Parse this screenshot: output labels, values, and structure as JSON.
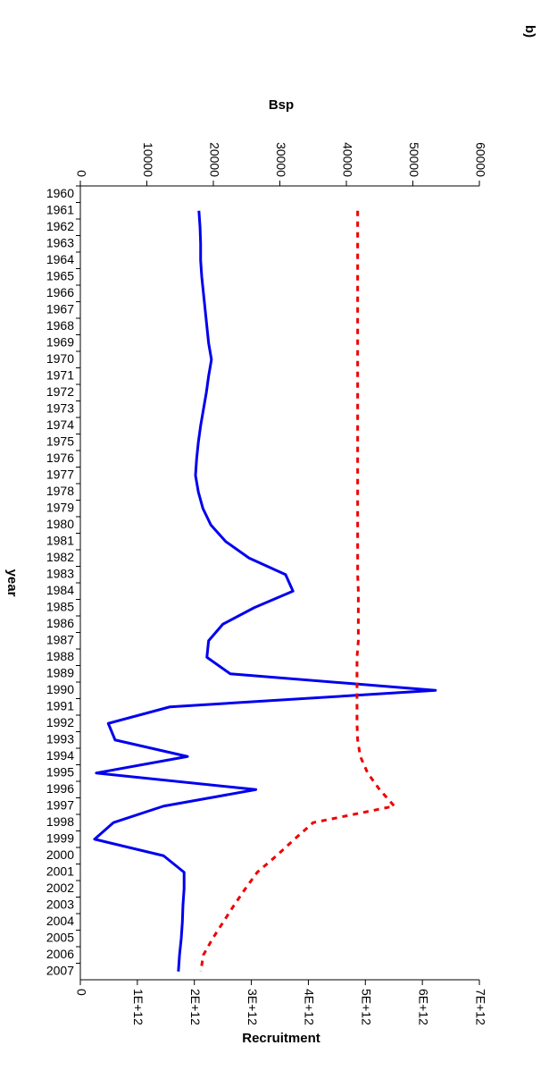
{
  "chart_data": {
    "type": "line",
    "panel_label": "b)",
    "x_label": "year",
    "y_label": "Bsp",
    "y2_label": "Recruitment",
    "categories": [
      "1960",
      "1961",
      "1962",
      "1963",
      "1964",
      "1965",
      "1966",
      "1967",
      "1968",
      "1969",
      "1970",
      "1971",
      "1972",
      "1973",
      "1974",
      "1975",
      "1976",
      "1977",
      "1978",
      "1979",
      "1980",
      "1981",
      "1982",
      "1983",
      "1984",
      "1985",
      "1986",
      "1987",
      "1988",
      "1989",
      "1990",
      "1991",
      "1992",
      "1993",
      "1994",
      "1995",
      "1996",
      "1997",
      "1998",
      "1999",
      "2000",
      "2001",
      "2002",
      "2003",
      "2004",
      "2005",
      "2006",
      "2007"
    ],
    "ylim": [
      0,
      60000
    ],
    "yticks": [
      0,
      10000,
      20000,
      30000,
      40000,
      50000,
      60000
    ],
    "y2lim": [
      0,
      7000000000000
    ],
    "y2ticks": [
      0,
      {
        "value": 1000000000000,
        "label": "1E+12"
      },
      {
        "value": 2000000000000,
        "label": "2E+12"
      },
      {
        "value": 3000000000000,
        "label": "3E+12"
      },
      {
        "value": 4000000000000,
        "label": "4E+12"
      },
      {
        "value": 5000000000000,
        "label": "5E+12"
      },
      {
        "value": 6000000000000,
        "label": "6E+12"
      },
      {
        "value": 7000000000000,
        "label": "7E+12"
      }
    ],
    "series": [
      {
        "color": "#0000ee",
        "style": "solid",
        "axis": "y2",
        "values": [
          null,
          2080000000000,
          2100000000000,
          2110000000000,
          2110000000000,
          2130000000000,
          2160000000000,
          2190000000000,
          2220000000000,
          2250000000000,
          2300000000000,
          2250000000000,
          2210000000000,
          2160000000000,
          2110000000000,
          2070000000000,
          2040000000000,
          2020000000000,
          2070000000000,
          2150000000000,
          2290000000000,
          2550000000000,
          2960000000000,
          3600000000000,
          3730000000000,
          3050000000000,
          2500000000000,
          2250000000000,
          2220000000000,
          2630000000000,
          6230000000000,
          1570000000000,
          490000000000,
          610000000000,
          1880000000000,
          280000000000,
          3080000000000,
          1460000000000,
          580000000000,
          250000000000,
          1460000000000,
          1820000000000,
          1820000000000,
          1800000000000,
          1790000000000,
          1770000000000,
          1740000000000,
          1720000000000
        ]
      },
      {
        "color": "#ee0000",
        "style": "dashed",
        "axis": "y",
        "values": [
          null,
          41700,
          41700,
          41700,
          41700,
          41700,
          41700,
          41700,
          41700,
          41700,
          41700,
          41700,
          41700,
          41700,
          41700,
          41700,
          41700,
          41700,
          41700,
          41700,
          41700,
          41700,
          41700,
          41700,
          41800,
          41800,
          41800,
          41800,
          41600,
          41600,
          41600,
          41600,
          41600,
          41700,
          42100,
          43200,
          45000,
          47200,
          35000,
          32200,
          29500,
          26600,
          24800,
          23100,
          21500,
          19900,
          18500,
          18100
        ]
      }
    ]
  }
}
